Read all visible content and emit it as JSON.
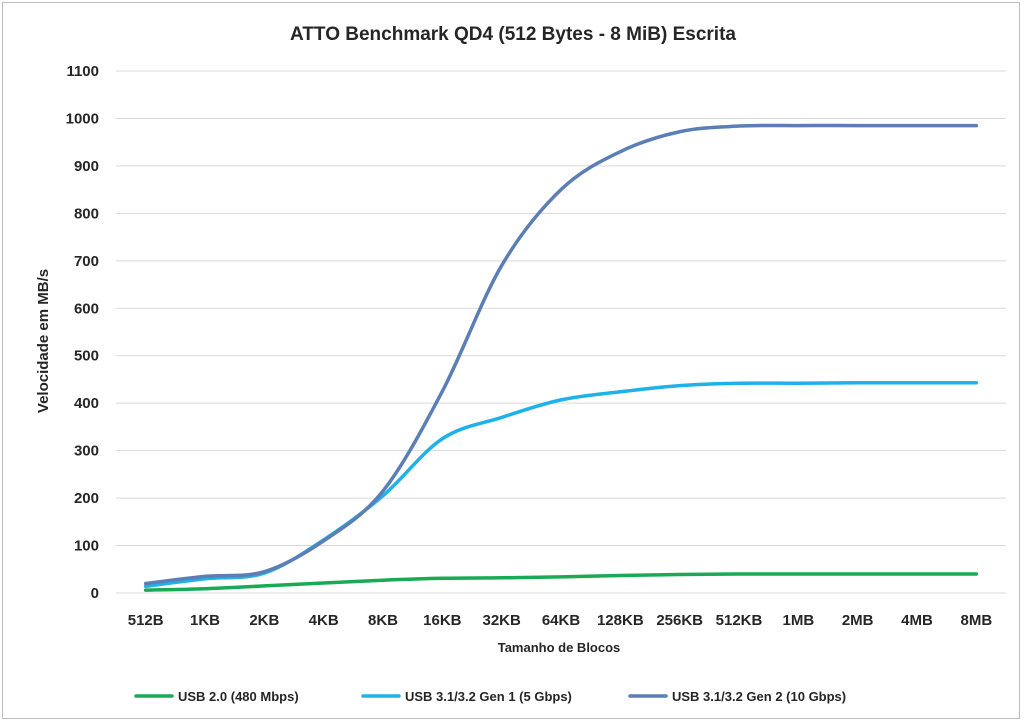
{
  "chart_data": {
    "type": "line",
    "title": "ATTO Benchmark QD4 (512 Bytes - 8 MiB) Escrita",
    "xlabel": "Tamanho de Blocos",
    "ylabel": "Velocidade em MB/s",
    "ylim": [
      0,
      1100
    ],
    "yticks": [
      "0",
      "100",
      "200",
      "300",
      "400",
      "500",
      "600",
      "700",
      "800",
      "900",
      "1000",
      "1100"
    ],
    "grid": true,
    "legend_position": "bottom",
    "categories": [
      "512B",
      "1KB",
      "2KB",
      "4KB",
      "8KB",
      "16KB",
      "32KB",
      "64KB",
      "128KB",
      "256KB",
      "512KB",
      "1MB",
      "2MB",
      "4MB",
      "8MB"
    ],
    "series": [
      {
        "name": "USB 2.0 (480 Mbps)",
        "color": "#1aaa55",
        "values": [
          6,
          9,
          15,
          21,
          27,
          31,
          32,
          34,
          37,
          39,
          40,
          40,
          40,
          40,
          40
        ]
      },
      {
        "name": "USB 3.1/3.2 Gen 1 (5 Gbps)",
        "color": "#1eb2e8",
        "values": [
          14,
          30,
          42,
          112,
          205,
          325,
          370,
          407,
          424,
          437,
          442,
          442,
          443,
          443,
          443
        ]
      },
      {
        "name": "USB 3.1/3.2 Gen 2 (10 Gbps)",
        "color": "#5b7fb5",
        "values": [
          20,
          35,
          45,
          110,
          215,
          425,
          690,
          850,
          930,
          972,
          984,
          985,
          985,
          985,
          985
        ]
      }
    ]
  }
}
